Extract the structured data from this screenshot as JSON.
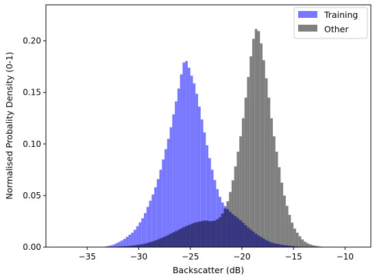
{
  "colors": {
    "training": "#7777ff",
    "other": "#7f7f7f",
    "overlap": "#36367f",
    "axis": "#000000",
    "background": "#ffffff"
  },
  "chart_data": {
    "type": "bar",
    "subtype": "overlapping-histogram",
    "title": "",
    "xlabel": "Backscatter (dB)",
    "ylabel": "Normalised Probality Density (0-1)",
    "xlim": [
      -39,
      -7.5
    ],
    "ylim": [
      0,
      0.235
    ],
    "bin_width": 0.25,
    "grid": false,
    "legend_position": "top-right",
    "x_ticks": [
      -35,
      -30,
      -25,
      -20,
      -15,
      -10
    ],
    "x_tick_labels": [
      "−35",
      "−30",
      "−25",
      "−20",
      "−15",
      "−10"
    ],
    "y_ticks": [
      0.0,
      0.05,
      0.1,
      0.15,
      0.2
    ],
    "y_tick_labels": [
      "0.00",
      "0.05",
      "0.10",
      "0.15",
      "0.20"
    ],
    "series": [
      {
        "name": "Training",
        "color": "#7777ff",
        "points": [
          [
            -33.5,
            0.0
          ],
          [
            -32.5,
            0.002
          ],
          [
            -31.5,
            0.007
          ],
          [
            -30.5,
            0.015
          ],
          [
            -30.0,
            0.022
          ],
          [
            -29.5,
            0.03
          ],
          [
            -29.0,
            0.042
          ],
          [
            -28.5,
            0.054
          ],
          [
            -28.0,
            0.07
          ],
          [
            -27.5,
            0.09
          ],
          [
            -27.0,
            0.11
          ],
          [
            -26.5,
            0.135
          ],
          [
            -26.0,
            0.16
          ],
          [
            -25.75,
            0.175
          ],
          [
            -25.5,
            0.183
          ],
          [
            -25.25,
            0.178
          ],
          [
            -25.0,
            0.17
          ],
          [
            -24.5,
            0.155
          ],
          [
            -24.0,
            0.13
          ],
          [
            -23.5,
            0.105
          ],
          [
            -23.0,
            0.08
          ],
          [
            -22.5,
            0.06
          ],
          [
            -22.0,
            0.045
          ],
          [
            -21.5,
            0.038
          ],
          [
            -21.0,
            0.033
          ],
          [
            -20.5,
            0.029
          ],
          [
            -20.0,
            0.025
          ],
          [
            -19.5,
            0.02
          ],
          [
            -19.0,
            0.016
          ],
          [
            -18.5,
            0.012
          ],
          [
            -18.0,
            0.009
          ],
          [
            -17.5,
            0.006
          ],
          [
            -17.0,
            0.004
          ],
          [
            -16.0,
            0.002
          ],
          [
            -15.0,
            0.001
          ],
          [
            -14.0,
            0.0
          ]
        ]
      },
      {
        "name": "Other",
        "color": "#7f7f7f",
        "points": [
          [
            -33.0,
            0.0
          ],
          [
            -31.0,
            0.001
          ],
          [
            -29.5,
            0.003
          ],
          [
            -28.5,
            0.006
          ],
          [
            -27.5,
            0.01
          ],
          [
            -26.5,
            0.015
          ],
          [
            -25.5,
            0.02
          ],
          [
            -24.5,
            0.024
          ],
          [
            -23.5,
            0.026
          ],
          [
            -23.0,
            0.025
          ],
          [
            -22.5,
            0.026
          ],
          [
            -22.0,
            0.03
          ],
          [
            -21.5,
            0.04
          ],
          [
            -21.0,
            0.058
          ],
          [
            -20.5,
            0.085
          ],
          [
            -20.0,
            0.115
          ],
          [
            -19.5,
            0.155
          ],
          [
            -19.0,
            0.195
          ],
          [
            -18.75,
            0.209
          ],
          [
            -18.5,
            0.214
          ],
          [
            -18.25,
            0.205
          ],
          [
            -18.0,
            0.19
          ],
          [
            -17.5,
            0.155
          ],
          [
            -17.0,
            0.115
          ],
          [
            -16.5,
            0.085
          ],
          [
            -16.0,
            0.055
          ],
          [
            -15.5,
            0.035
          ],
          [
            -15.0,
            0.02
          ],
          [
            -14.5,
            0.012
          ],
          [
            -14.0,
            0.006
          ],
          [
            -13.5,
            0.003
          ],
          [
            -13.0,
            0.0015
          ],
          [
            -12.0,
            0.0
          ]
        ]
      }
    ]
  }
}
